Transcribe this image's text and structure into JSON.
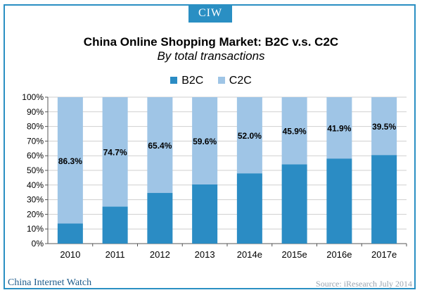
{
  "badge": "CIW",
  "footer": {
    "left": "China Internet Watch",
    "right": "Source: iResearch July 2014"
  },
  "colors": {
    "b2c": "#2b8cc4",
    "c2c": "#9fc5e6",
    "frame": "#2a8fc3",
    "grid": "#cfcfcf"
  },
  "chart_data": {
    "type": "bar",
    "stacked": true,
    "title": "China Online Shopping Market: B2C v.s. C2C",
    "subtitle": "By total transactions",
    "categories": [
      "2010",
      "2011",
      "2012",
      "2013",
      "2014e",
      "2015e",
      "2016e",
      "2017e"
    ],
    "series": [
      {
        "name": "B2C",
        "values": [
          13.7,
          25.3,
          34.6,
          40.4,
          48.0,
          54.1,
          58.1,
          60.5
        ]
      },
      {
        "name": "C2C",
        "values": [
          86.3,
          74.7,
          65.4,
          59.6,
          52.0,
          45.9,
          41.9,
          39.5
        ]
      }
    ],
    "data_labels": [
      "86.3%",
      "74.7%",
      "65.4%",
      "59.6%",
      "52.0%",
      "45.9%",
      "41.9%",
      "39.5%"
    ],
    "ylim": [
      0,
      100
    ],
    "yticks": [
      "0%",
      "10%",
      "20%",
      "30%",
      "40%",
      "50%",
      "60%",
      "70%",
      "80%",
      "90%",
      "100%"
    ],
    "legend_position": "top",
    "grid": true
  }
}
